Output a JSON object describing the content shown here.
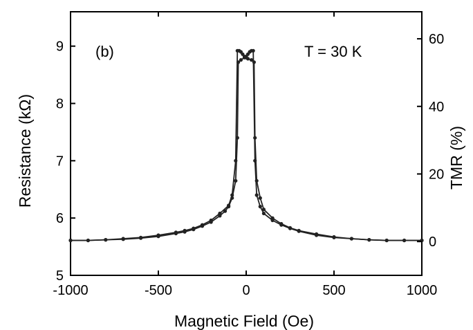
{
  "chart_data": {
    "type": "line",
    "panel_label": "(b)",
    "annotation": "T = 30 K",
    "xlabel": "Magnetic Field (Oe)",
    "ylabel": "Resistance (kΩ)",
    "y2label": "TMR (%)",
    "xlim": [
      -1000,
      1000
    ],
    "ylim": [
      5,
      9.6
    ],
    "y2lim": [
      -10,
      68
    ],
    "xticks": [
      -1000,
      -500,
      0,
      500,
      1000
    ],
    "yticks": [
      5,
      6,
      7,
      8,
      9
    ],
    "y2ticks": [
      0,
      20,
      40,
      60
    ],
    "grid": false,
    "series": [
      {
        "values": [
          [
            -1000,
            5.61
          ],
          [
            -900,
            5.61
          ],
          [
            -800,
            5.62
          ],
          [
            -700,
            5.63
          ],
          [
            -600,
            5.65
          ],
          [
            -500,
            5.68
          ],
          [
            -400,
            5.73
          ],
          [
            -350,
            5.76
          ],
          [
            -300,
            5.8
          ],
          [
            -250,
            5.86
          ],
          [
            -200,
            5.93
          ],
          [
            -150,
            6.04
          ],
          [
            -120,
            6.12
          ],
          [
            -100,
            6.2
          ],
          [
            -80,
            6.35
          ],
          [
            -60,
            6.65
          ],
          [
            -50,
            7.4
          ],
          [
            -45,
            8.72
          ],
          [
            -30,
            8.76
          ],
          [
            -10,
            8.8
          ],
          [
            0,
            8.82
          ],
          [
            10,
            8.86
          ],
          [
            20,
            8.9
          ],
          [
            30,
            8.92
          ],
          [
            40,
            8.92
          ],
          [
            50,
            7.0
          ],
          [
            60,
            6.4
          ],
          [
            80,
            6.2
          ],
          [
            100,
            6.08
          ],
          [
            150,
            5.96
          ],
          [
            200,
            5.88
          ],
          [
            250,
            5.82
          ],
          [
            300,
            5.77
          ],
          [
            400,
            5.7
          ],
          [
            500,
            5.66
          ],
          [
            600,
            5.64
          ],
          [
            700,
            5.62
          ],
          [
            800,
            5.61
          ],
          [
            900,
            5.61
          ],
          [
            1000,
            5.61
          ]
        ]
      },
      {
        "values": [
          [
            -1000,
            5.61
          ],
          [
            -900,
            5.61
          ],
          [
            -800,
            5.62
          ],
          [
            -700,
            5.64
          ],
          [
            -600,
            5.66
          ],
          [
            -500,
            5.7
          ],
          [
            -400,
            5.75
          ],
          [
            -350,
            5.78
          ],
          [
            -300,
            5.82
          ],
          [
            -250,
            5.88
          ],
          [
            -200,
            5.96
          ],
          [
            -150,
            6.08
          ],
          [
            -100,
            6.22
          ],
          [
            -80,
            6.4
          ],
          [
            -60,
            7.0
          ],
          [
            -50,
            8.92
          ],
          [
            -40,
            8.92
          ],
          [
            -30,
            8.9
          ],
          [
            -20,
            8.86
          ],
          [
            -10,
            8.82
          ],
          [
            0,
            8.8
          ],
          [
            10,
            8.78
          ],
          [
            30,
            8.76
          ],
          [
            45,
            8.72
          ],
          [
            50,
            7.4
          ],
          [
            60,
            6.65
          ],
          [
            80,
            6.35
          ],
          [
            100,
            6.15
          ],
          [
            150,
            6.0
          ],
          [
            200,
            5.9
          ],
          [
            250,
            5.83
          ],
          [
            300,
            5.78
          ],
          [
            400,
            5.72
          ],
          [
            500,
            5.67
          ],
          [
            600,
            5.64
          ],
          [
            700,
            5.62
          ],
          [
            800,
            5.61
          ],
          [
            900,
            5.61
          ],
          [
            1000,
            5.61
          ]
        ]
      }
    ]
  }
}
